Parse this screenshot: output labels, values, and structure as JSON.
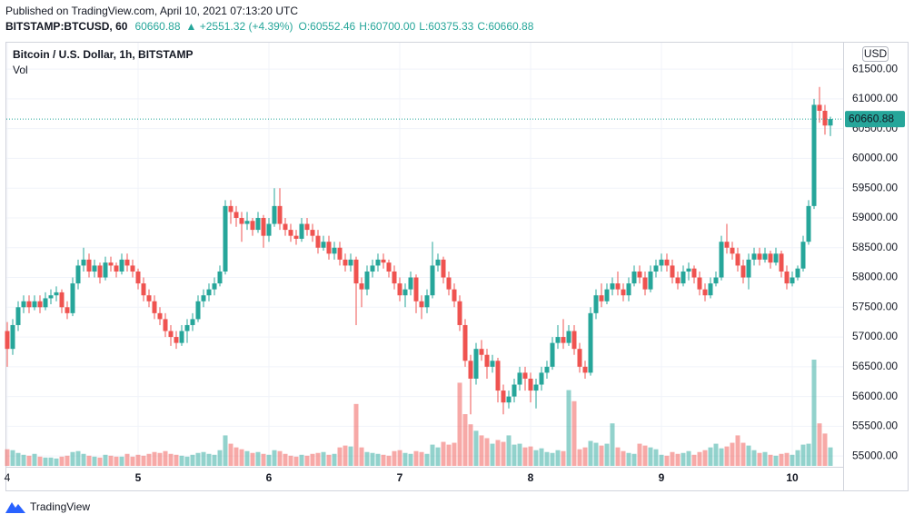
{
  "header": {
    "published": "Published on TradingView.com, April 10, 2021 07:13:20 UTC",
    "symbol": "BITSTAMP:BTCUSD, 60",
    "last": "60660.88",
    "change": "▲ +2551.32 (+4.39%)",
    "ohlc": [
      "O:60552.46",
      "H:60700.00",
      "L:60375.33",
      "C:60660.88"
    ]
  },
  "footer": {
    "brand": "TradingView"
  },
  "chart_data": {
    "type": "candlestick",
    "title": "Bitcoin / U.S. Dollar, 1h, BITSTAMP",
    "volume_label": "Vol",
    "currency": "USD",
    "up_color": "#26a69a",
    "down_color": "#ef5350",
    "ylim": [
      54850,
      61700
    ],
    "yticks": [
      {
        "value": 55000,
        "label": "55000.00"
      },
      {
        "value": 55500,
        "label": "55500.00"
      },
      {
        "value": 56000,
        "label": "56000.00"
      },
      {
        "value": 56500,
        "label": "56500.00"
      },
      {
        "value": 57000,
        "label": "57000.00"
      },
      {
        "value": 57500,
        "label": "57500.00"
      },
      {
        "value": 58000,
        "label": "58000.00"
      },
      {
        "value": 58500,
        "label": "58500.00"
      },
      {
        "value": 59000,
        "label": "59000.00"
      },
      {
        "value": 59500,
        "label": "59500.00"
      },
      {
        "value": 60000,
        "label": "60000.00"
      },
      {
        "value": 60500,
        "label": "60500.00"
      },
      {
        "value": 61000,
        "label": "61000.00"
      },
      {
        "value": 61500,
        "label": "61500.00"
      }
    ],
    "xticks": [
      {
        "value": 0,
        "label": "4"
      },
      {
        "value": 24,
        "label": "5"
      },
      {
        "value": 48,
        "label": "6"
      },
      {
        "value": 72,
        "label": "7"
      },
      {
        "value": 96,
        "label": "8"
      },
      {
        "value": 120,
        "label": "9"
      },
      {
        "value": 144,
        "label": "10"
      }
    ],
    "last_price": {
      "value": 60660.88,
      "label": "60660.88"
    },
    "grid": true,
    "candles": [
      [
        57100,
        57250,
        56500,
        56800
      ],
      [
        56800,
        57300,
        56700,
        57200
      ],
      [
        57200,
        57600,
        57100,
        57500
      ],
      [
        57500,
        57700,
        57400,
        57600
      ],
      [
        57600,
        57700,
        57400,
        57500
      ],
      [
        57500,
        57700,
        57450,
        57600
      ],
      [
        57600,
        57700,
        57400,
        57500
      ],
      [
        57500,
        57750,
        57450,
        57650
      ],
      [
        57650,
        57800,
        57550,
        57700
      ],
      [
        57700,
        57850,
        57600,
        57750
      ],
      [
        57750,
        57800,
        57400,
        57500
      ],
      [
        57500,
        57600,
        57300,
        57400
      ],
      [
        57400,
        58000,
        57350,
        57900
      ],
      [
        57900,
        58300,
        57800,
        58200
      ],
      [
        58200,
        58500,
        58100,
        58300
      ],
      [
        58300,
        58400,
        58000,
        58100
      ],
      [
        58100,
        58300,
        58000,
        58200
      ],
      [
        58200,
        58250,
        57900,
        58000
      ],
      [
        58000,
        58350,
        57950,
        58250
      ],
      [
        58250,
        58350,
        58100,
        58200
      ],
      [
        58200,
        58250,
        58000,
        58100
      ],
      [
        58100,
        58400,
        58050,
        58300
      ],
      [
        58300,
        58400,
        58100,
        58200
      ],
      [
        58200,
        58300,
        58000,
        58100
      ],
      [
        58100,
        58150,
        57800,
        57900
      ],
      [
        57900,
        58000,
        57600,
        57700
      ],
      [
        57700,
        57800,
        57500,
        57600
      ],
      [
        57600,
        57700,
        57300,
        57400
      ],
      [
        57400,
        57500,
        57200,
        57300
      ],
      [
        57300,
        57400,
        57000,
        57100
      ],
      [
        57100,
        57200,
        56850,
        57000
      ],
      [
        57000,
        57100,
        56800,
        56900
      ],
      [
        56900,
        57200,
        56850,
        57100
      ],
      [
        57100,
        57300,
        56900,
        57200
      ],
      [
        57200,
        57400,
        57100,
        57300
      ],
      [
        57300,
        57700,
        57250,
        57600
      ],
      [
        57600,
        57800,
        57500,
        57700
      ],
      [
        57700,
        57900,
        57600,
        57800
      ],
      [
        57800,
        58000,
        57700,
        57900
      ],
      [
        57900,
        58200,
        57850,
        58100
      ],
      [
        58100,
        59300,
        58050,
        59200
      ],
      [
        59200,
        59300,
        58900,
        59100
      ],
      [
        59100,
        59200,
        58850,
        59000
      ],
      [
        59000,
        59100,
        58600,
        58900
      ],
      [
        58900,
        59100,
        58800,
        58950
      ],
      [
        58950,
        59000,
        58700,
        58800
      ],
      [
        58800,
        59100,
        58750,
        59000
      ],
      [
        59000,
        59050,
        58500,
        58700
      ],
      [
        58700,
        59000,
        58600,
        58900
      ],
      [
        58900,
        59500,
        58850,
        59200
      ],
      [
        59200,
        59500,
        58800,
        58900
      ],
      [
        58900,
        59000,
        58700,
        58800
      ],
      [
        58800,
        58900,
        58600,
        58700
      ],
      [
        58700,
        58800,
        58550,
        58650
      ],
      [
        58650,
        59000,
        58600,
        58900
      ],
      [
        58900,
        59000,
        58700,
        58800
      ],
      [
        58800,
        58900,
        58600,
        58700
      ],
      [
        58700,
        58800,
        58400,
        58500
      ],
      [
        58500,
        58700,
        58450,
        58600
      ],
      [
        58600,
        58700,
        58300,
        58400
      ],
      [
        58400,
        58600,
        58300,
        58500
      ],
      [
        58500,
        58600,
        58200,
        58300
      ],
      [
        58300,
        58400,
        58100,
        58200
      ],
      [
        58200,
        58400,
        58100,
        58300
      ],
      [
        58300,
        58350,
        57200,
        57900
      ],
      [
        57900,
        58000,
        57500,
        57800
      ],
      [
        57800,
        58200,
        57700,
        58100
      ],
      [
        58100,
        58300,
        58000,
        58200
      ],
      [
        58200,
        58400,
        58100,
        58300
      ],
      [
        58300,
        58400,
        58150,
        58250
      ],
      [
        58250,
        58300,
        58000,
        58100
      ],
      [
        58100,
        58200,
        57800,
        57900
      ],
      [
        57900,
        58000,
        57600,
        57700
      ],
      [
        57700,
        57900,
        57500,
        57800
      ],
      [
        57800,
        58100,
        57700,
        58000
      ],
      [
        58000,
        58050,
        57400,
        57600
      ],
      [
        57600,
        57700,
        57300,
        57500
      ],
      [
        57500,
        57800,
        57400,
        57700
      ],
      [
        57700,
        58600,
        57650,
        58200
      ],
      [
        58200,
        58400,
        58100,
        58300
      ],
      [
        58300,
        58350,
        57900,
        58000
      ],
      [
        58000,
        58100,
        57700,
        57800
      ],
      [
        57800,
        57900,
        57500,
        57600
      ],
      [
        57600,
        57700,
        57100,
        57200
      ],
      [
        57200,
        57300,
        56500,
        56600
      ],
      [
        56600,
        56700,
        55700,
        56300
      ],
      [
        56300,
        56900,
        56200,
        56800
      ],
      [
        56800,
        56950,
        56600,
        56700
      ],
      [
        56700,
        56800,
        56300,
        56500
      ],
      [
        56500,
        56700,
        56400,
        56600
      ],
      [
        56600,
        56650,
        55900,
        56100
      ],
      [
        56100,
        56200,
        55700,
        55900
      ],
      [
        55900,
        56100,
        55800,
        56000
      ],
      [
        56000,
        56300,
        55900,
        56200
      ],
      [
        56200,
        56500,
        56100,
        56400
      ],
      [
        56400,
        56500,
        56100,
        56300
      ],
      [
        56300,
        56400,
        55900,
        56100
      ],
      [
        56100,
        56300,
        55800,
        56200
      ],
      [
        56200,
        56500,
        56100,
        56400
      ],
      [
        56400,
        56600,
        56300,
        56500
      ],
      [
        56500,
        57000,
        56450,
        56900
      ],
      [
        56900,
        57200,
        56800,
        57000
      ],
      [
        57000,
        57300,
        56800,
        56900
      ],
      [
        56900,
        57200,
        56850,
        57100
      ],
      [
        57100,
        57200,
        56700,
        56800
      ],
      [
        56800,
        56900,
        56400,
        56500
      ],
      [
        56500,
        56600,
        56300,
        56400
      ],
      [
        56400,
        57500,
        56350,
        57400
      ],
      [
        57400,
        57800,
        57300,
        57700
      ],
      [
        57700,
        57900,
        57500,
        57600
      ],
      [
        57600,
        57900,
        57550,
        57800
      ],
      [
        57800,
        58000,
        57700,
        57900
      ],
      [
        57900,
        58100,
        57700,
        57800
      ],
      [
        57800,
        57900,
        57600,
        57700
      ],
      [
        57700,
        58000,
        57600,
        57900
      ],
      [
        57900,
        58200,
        57850,
        58100
      ],
      [
        58100,
        58200,
        57900,
        58000
      ],
      [
        58000,
        58100,
        57700,
        57800
      ],
      [
        57800,
        58200,
        57750,
        58100
      ],
      [
        58100,
        58300,
        58000,
        58200
      ],
      [
        58200,
        58400,
        58100,
        58300
      ],
      [
        58300,
        58400,
        58100,
        58200
      ],
      [
        58200,
        58300,
        57900,
        58000
      ],
      [
        58000,
        58100,
        57800,
        57900
      ],
      [
        57900,
        58200,
        57850,
        58100
      ],
      [
        58100,
        58250,
        57950,
        58150
      ],
      [
        58150,
        58200,
        57900,
        58000
      ],
      [
        58000,
        58100,
        57700,
        57800
      ],
      [
        57800,
        57900,
        57600,
        57700
      ],
      [
        57700,
        58000,
        57650,
        57900
      ],
      [
        57900,
        58100,
        57850,
        58000
      ],
      [
        58000,
        58700,
        57950,
        58600
      ],
      [
        58600,
        58900,
        58400,
        58500
      ],
      [
        58500,
        58600,
        58300,
        58400
      ],
      [
        58400,
        58500,
        58100,
        58200
      ],
      [
        58200,
        58300,
        57900,
        58000
      ],
      [
        58000,
        58400,
        57800,
        58300
      ],
      [
        58300,
        58500,
        58200,
        58400
      ],
      [
        58400,
        58500,
        58200,
        58300
      ],
      [
        58300,
        58500,
        58250,
        58400
      ],
      [
        58400,
        58450,
        58150,
        58250
      ],
      [
        58250,
        58500,
        58200,
        58400
      ],
      [
        58400,
        58450,
        58000,
        58100
      ],
      [
        58100,
        58200,
        57800,
        57900
      ],
      [
        57900,
        58100,
        57850,
        58000
      ],
      [
        58000,
        58200,
        57950,
        58150
      ],
      [
        58150,
        58700,
        58100,
        58600
      ],
      [
        58600,
        59300,
        58550,
        59200
      ],
      [
        59200,
        61000,
        59150,
        60900
      ],
      [
        60900,
        61200,
        60600,
        60800
      ],
      [
        60800,
        60900,
        60400,
        60552.46
      ],
      [
        60552.46,
        60700,
        60375.33,
        60660.88
      ]
    ],
    "volume": [
      180,
      170,
      140,
      120,
      110,
      130,
      100,
      90,
      90,
      80,
      100,
      110,
      150,
      160,
      130,
      110,
      100,
      90,
      120,
      110,
      100,
      100,
      130,
      100,
      120,
      110,
      130,
      150,
      140,
      160,
      130,
      120,
      110,
      100,
      120,
      140,
      150,
      130,
      120,
      170,
      330,
      240,
      200,
      180,
      160,
      140,
      150,
      130,
      120,
      170,
      160,
      130,
      110,
      100,
      120,
      110,
      130,
      140,
      150,
      120,
      130,
      200,
      220,
      210,
      670,
      200,
      150,
      140,
      130,
      120,
      110,
      160,
      170,
      140,
      130,
      160,
      150,
      130,
      230,
      200,
      260,
      230,
      250,
      900,
      560,
      450,
      380,
      330,
      300,
      240,
      280,
      260,
      330,
      230,
      240,
      200,
      210,
      170,
      190,
      150,
      140,
      170,
      160,
      820,
      700,
      180,
      200,
      270,
      250,
      220,
      240,
      460,
      200,
      160,
      140,
      130,
      240,
      220,
      200,
      180,
      120,
      110,
      150,
      130,
      140,
      160,
      120,
      150,
      170,
      200,
      240,
      190,
      210,
      250,
      330,
      250,
      220,
      170,
      140,
      150,
      120,
      110,
      130,
      140,
      120,
      170,
      230,
      240,
      1150,
      460,
      350,
      200
    ]
  }
}
